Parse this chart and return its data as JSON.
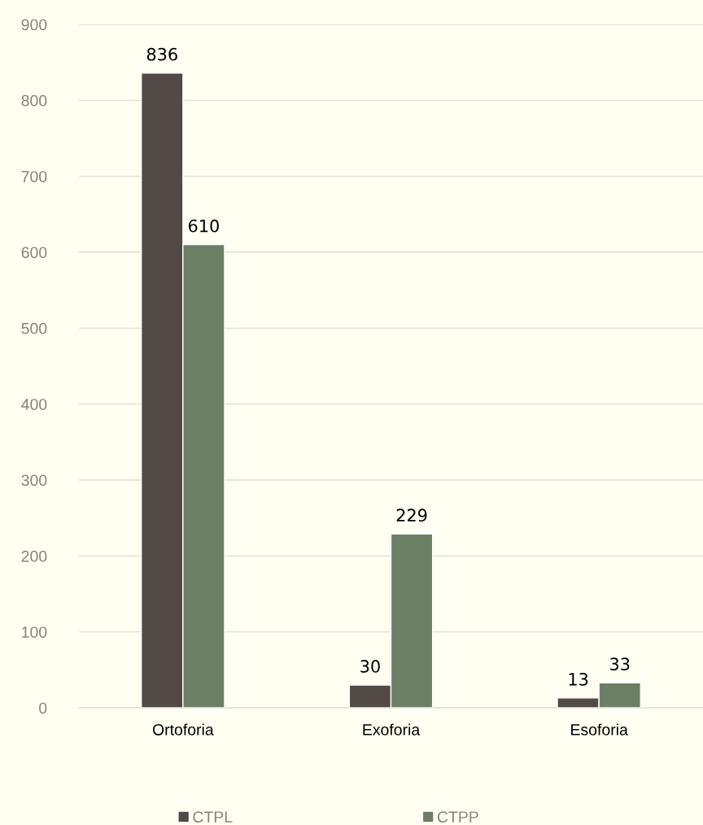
{
  "chart_data": {
    "type": "bar",
    "categories": [
      "Ortoforia",
      "Exoforia",
      "Esoforia"
    ],
    "series": [
      {
        "name": "CTPL",
        "color": "#524a44",
        "values": [
          836,
          30,
          13
        ]
      },
      {
        "name": "CTPP",
        "color": "#6b7f65",
        "values": [
          610,
          229,
          33
        ]
      }
    ],
    "ylim": [
      0,
      900
    ],
    "yticks": [
      0,
      100,
      200,
      300,
      400,
      500,
      600,
      700,
      800,
      900
    ],
    "grid": "y",
    "legend": "bottom",
    "data_labels": true
  }
}
